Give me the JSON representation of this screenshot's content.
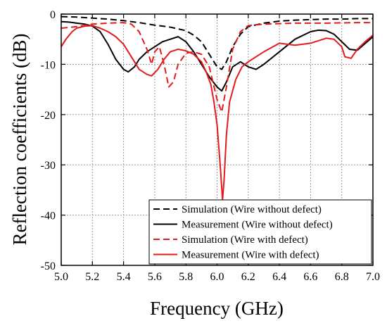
{
  "chart_data": {
    "type": "line",
    "title": "",
    "xlabel": "Frequency (GHz)",
    "ylabel": "Reflection coefficients (dB)",
    "xlim": [
      5.0,
      7.0
    ],
    "ylim": [
      -50,
      0
    ],
    "xticks": [
      "5.0",
      "5.2",
      "5.4",
      "5.6",
      "5.8",
      "6.0",
      "6.2",
      "6.4",
      "6.6",
      "6.8",
      "7.0"
    ],
    "yticks": [
      "0",
      "-10",
      "-20",
      "-30",
      "-40",
      "-50"
    ],
    "grid": true,
    "legend_position": "bottom-right",
    "series": [
      {
        "name": "Simulation (Wire without defect)",
        "color": "#000000",
        "dash": true,
        "x": [
          5.0,
          5.1,
          5.2,
          5.3,
          5.4,
          5.5,
          5.6,
          5.7,
          5.8,
          5.85,
          5.9,
          5.95,
          6.0,
          6.03,
          6.06,
          6.1,
          6.15,
          6.2,
          6.3,
          6.4,
          6.5,
          6.6,
          6.7,
          6.8,
          6.9,
          7.0
        ],
        "y": [
          -0.5,
          -0.6,
          -0.8,
          -1.0,
          -1.3,
          -1.7,
          -2.2,
          -2.6,
          -3.3,
          -4.2,
          -5.5,
          -8.0,
          -10.5,
          -11.0,
          -9.5,
          -6.5,
          -4.0,
          -2.5,
          -1.8,
          -1.4,
          -1.2,
          -1.1,
          -1.0,
          -1.0,
          -0.9,
          -0.9
        ]
      },
      {
        "name": "Measurement (Wire without defect)",
        "color": "#000000",
        "dash": false,
        "x": [
          5.0,
          5.05,
          5.1,
          5.15,
          5.2,
          5.25,
          5.3,
          5.35,
          5.4,
          5.43,
          5.47,
          5.5,
          5.55,
          5.6,
          5.65,
          5.7,
          5.75,
          5.8,
          5.85,
          5.9,
          5.95,
          6.0,
          6.03,
          6.06,
          6.1,
          6.15,
          6.2,
          6.25,
          6.3,
          6.4,
          6.5,
          6.6,
          6.65,
          6.7,
          6.75,
          6.8,
          6.85,
          6.9,
          7.0
        ],
        "y": [
          -1.5,
          -1.6,
          -1.8,
          -2.0,
          -2.4,
          -3.5,
          -6.0,
          -9.0,
          -11.0,
          -11.5,
          -10.5,
          -9.0,
          -7.5,
          -6.5,
          -5.5,
          -5.0,
          -4.5,
          -5.5,
          -7.5,
          -10.0,
          -12.5,
          -14.5,
          -15.3,
          -13.5,
          -10.5,
          -9.5,
          -10.5,
          -11.0,
          -10.0,
          -7.5,
          -5.0,
          -3.5,
          -3.2,
          -3.3,
          -4.0,
          -5.5,
          -7.0,
          -7.2,
          -4.5
        ]
      },
      {
        "name": "Simulation (Wire with defect)",
        "color": "#e41a1c",
        "dash": true,
        "x": [
          5.0,
          5.1,
          5.2,
          5.3,
          5.4,
          5.45,
          5.5,
          5.55,
          5.58,
          5.6,
          5.63,
          5.66,
          5.69,
          5.72,
          5.75,
          5.8,
          5.85,
          5.9,
          5.95,
          6.0,
          6.03,
          6.06,
          6.1,
          6.15,
          6.2,
          6.3,
          6.5,
          6.7,
          6.9,
          7.0
        ],
        "y": [
          -2.8,
          -2.5,
          -2.0,
          -1.8,
          -1.7,
          -2.0,
          -3.5,
          -7.0,
          -10.0,
          -7.5,
          -6.5,
          -10.0,
          -14.5,
          -13.5,
          -10.0,
          -7.8,
          -7.5,
          -8.0,
          -10.5,
          -17.0,
          -19.5,
          -14.5,
          -7.0,
          -3.5,
          -2.3,
          -2.0,
          -1.8,
          -1.8,
          -1.7,
          -1.7
        ]
      },
      {
        "name": "Measurement (Wire with defect)",
        "color": "#e41a1c",
        "dash": false,
        "x": [
          5.0,
          5.03,
          5.07,
          5.1,
          5.15,
          5.2,
          5.25,
          5.3,
          5.35,
          5.4,
          5.45,
          5.5,
          5.55,
          5.58,
          5.62,
          5.66,
          5.7,
          5.75,
          5.8,
          5.85,
          5.9,
          5.93,
          5.96,
          5.98,
          6.0,
          6.02,
          6.035,
          6.045,
          6.06,
          6.08,
          6.12,
          6.16,
          6.2,
          6.3,
          6.4,
          6.5,
          6.6,
          6.7,
          6.75,
          6.8,
          6.82,
          6.86,
          6.9,
          6.95,
          7.0
        ],
        "y": [
          -6.5,
          -5.0,
          -3.5,
          -2.8,
          -2.4,
          -2.3,
          -2.8,
          -3.5,
          -4.5,
          -6.0,
          -8.5,
          -11.0,
          -12.0,
          -12.3,
          -11.0,
          -9.0,
          -7.5,
          -7.0,
          -7.3,
          -8.0,
          -9.5,
          -11.5,
          -14.0,
          -17.5,
          -22.0,
          -30.0,
          -37.0,
          -33.0,
          -24.0,
          -17.5,
          -13.0,
          -10.5,
          -9.5,
          -7.5,
          -5.8,
          -6.2,
          -5.8,
          -4.8,
          -5.0,
          -6.5,
          -8.5,
          -8.8,
          -7.0,
          -5.5,
          -4.2
        ]
      }
    ]
  }
}
